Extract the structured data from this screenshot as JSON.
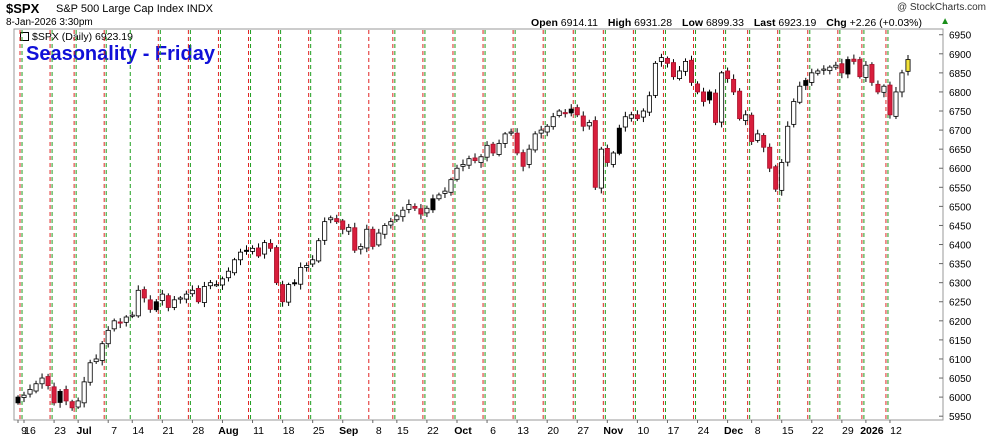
{
  "header": {
    "symbol": "$SPX",
    "name": "S&P 500 Large Cap Index",
    "exchange": "INDX",
    "date": "8-Jan-2026 3:30pm",
    "copyright": "@ StockCharts.com",
    "open_label": "Open",
    "open": "6914.11",
    "high_label": "High",
    "high": "6931.28",
    "low_label": "Low",
    "low": "6899.33",
    "last_label": "Last",
    "last": "6923.19",
    "chg_label": "Chg",
    "chg": "+2.26 (+0.03%)",
    "chg_icon": "triangle-up-icon",
    "legend": "$SPX (Daily) 6923.19",
    "title": "Seasonality - Friday"
  },
  "colors": {
    "up": "#ffffff",
    "down": "#d81e3c",
    "flat_black": "#000000",
    "highlight": "#f2e23a",
    "green_line": "#1f9e1f",
    "red_line": "#e02424",
    "title": "#1010d8"
  },
  "chart_data": {
    "type": "candlestick",
    "title": "Seasonality - Friday",
    "series_name": "$SPX (Daily)",
    "y_axis": {
      "position": "right",
      "range": [
        5940,
        6965
      ],
      "ticks": [
        5950,
        6000,
        6050,
        6100,
        6150,
        6200,
        6250,
        6300,
        6350,
        6400,
        6450,
        6500,
        6550,
        6600,
        6650,
        6700,
        6750,
        6800,
        6850,
        6900,
        6950
      ]
    },
    "x_tick_labels": [
      "9",
      "16",
      "23",
      "Jul",
      "7",
      "14",
      "21",
      "28",
      "Aug",
      "11",
      "18",
      "25",
      "Sep",
      "8",
      "15",
      "22",
      "Oct",
      "6",
      "13",
      "20",
      "27",
      "Nov",
      "10",
      "17",
      "24",
      "Dec",
      "8",
      "15",
      "22",
      "29",
      "2026",
      "12"
    ],
    "bold_x_labels": [
      "Jul",
      "Aug",
      "Sep",
      "Oct",
      "Nov",
      "Dec",
      "2026"
    ],
    "vertical_lines": "dashed green line at each Monday, dashed red line at each Friday",
    "start_date": "2025-06-06",
    "end_date": "2026-01-08",
    "closes": [
      6000,
      6005,
      6020,
      6035,
      6050,
      6030,
      5985,
      6015,
      5990,
      5972,
      5990,
      6040,
      6090,
      6100,
      6140,
      6175,
      6200,
      6195,
      6210,
      6215,
      6280,
      6260,
      6230,
      6250,
      6270,
      6235,
      6255,
      6260,
      6270,
      6280,
      6250,
      6290,
      6300,
      6295,
      6310,
      6330,
      6360,
      6380,
      6385,
      6390,
      6370,
      6405,
      6390,
      6300,
      6250,
      6295,
      6300,
      6340,
      6345,
      6360,
      6410,
      6460,
      6470,
      6460,
      6440,
      6445,
      6385,
      6395,
      6440,
      6395,
      6430,
      6450,
      6460,
      6475,
      6490,
      6505,
      6495,
      6480,
      6495,
      6520,
      6530,
      6540,
      6570,
      6600,
      6610,
      6625,
      6620,
      6630,
      6660,
      6640,
      6665,
      6690,
      6695,
      6640,
      6605,
      6650,
      6690,
      6700,
      6710,
      6735,
      6750,
      6745,
      6755,
      6740,
      6710,
      6720,
      6550,
      6650,
      6615,
      6640,
      6705,
      6735,
      6740,
      6730,
      6750,
      6790,
      6875,
      6890,
      6875,
      6840,
      6855,
      6880,
      6825,
      6800,
      6775,
      6800,
      6720,
      6850,
      6835,
      6800,
      6730,
      6740,
      6670,
      6690,
      6655,
      6600,
      6545,
      6615,
      6710,
      6775,
      6815,
      6830,
      6850,
      6855,
      6860,
      6865,
      6870,
      6850,
      6885,
      6880,
      6840,
      6870,
      6825,
      6800,
      6815,
      6740,
      6800,
      6850,
      6885,
      6910,
      6905,
      6920,
      6930,
      6925,
      6900,
      6880,
      6855,
      6905,
      6940,
      6945,
      6922,
      6923
    ]
  }
}
